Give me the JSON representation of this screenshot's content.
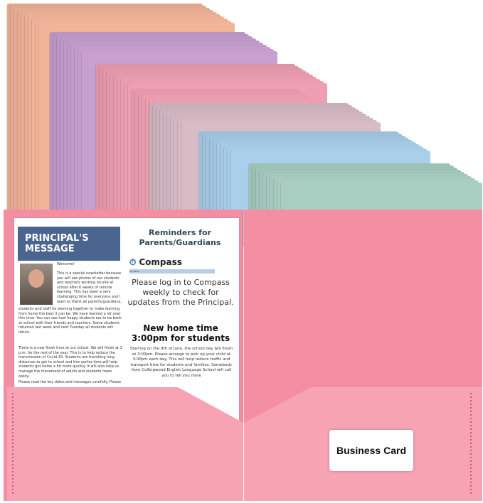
{
  "stacks": [
    {
      "color": "#f3b59a"
    },
    {
      "color": "#c7a0cf"
    },
    {
      "color": "#ef9fb3"
    },
    {
      "color": "#f6a4b8"
    },
    {
      "color": "#d7bcc6"
    },
    {
      "color": "#a9cfea"
    },
    {
      "color": "#a9cfc3"
    }
  ],
  "folder_color": "#f48fa3",
  "newsletter": {
    "title": "PRINCIPAL'S MESSAGE",
    "welcome": "Welcome!",
    "p1": "This is a special newsletter because you will see photos of our students and teachers working on-site at school after 6 weeks of remote learning. This has been a very challenging time for everyone and I want to thank all parents/guardians,",
    "p2": "students and staff for working together to make learning from home the best it can be. We have learned a lot over this time. You can see how happy students are to be back at school with their friends and teachers. Some students returned last week and next Tuesday all students will return.",
    "p3": "There is a new finish time at our school. We will finish at 3 p.m. for the rest of the year. This is to help reduce the transmission of Covid-19. Students are travelling long distances to get to school and this earlier time will help students get home a bit more quickly. It will also help us manage the movement of adults and students more easily.",
    "p4": "Please read the key dates and messages carefully. Please",
    "reminders": "Reminders for Parents/Guardians",
    "compass": "Compass",
    "my_news": "My News",
    "please": "Please log in to Compass weekly to check for updates from the Principal.",
    "new_time": "New home time 3:00pm for students",
    "detail": "Starting on the 9th of June, the school day will finish at 3:00pm. Please arrange to pick up your child at 3:00pm each day. This will help reduce traffic and transport time for students and families. Somebody from Collingwood English Language School will call you to tell you more"
  },
  "business_card": "Business Card"
}
